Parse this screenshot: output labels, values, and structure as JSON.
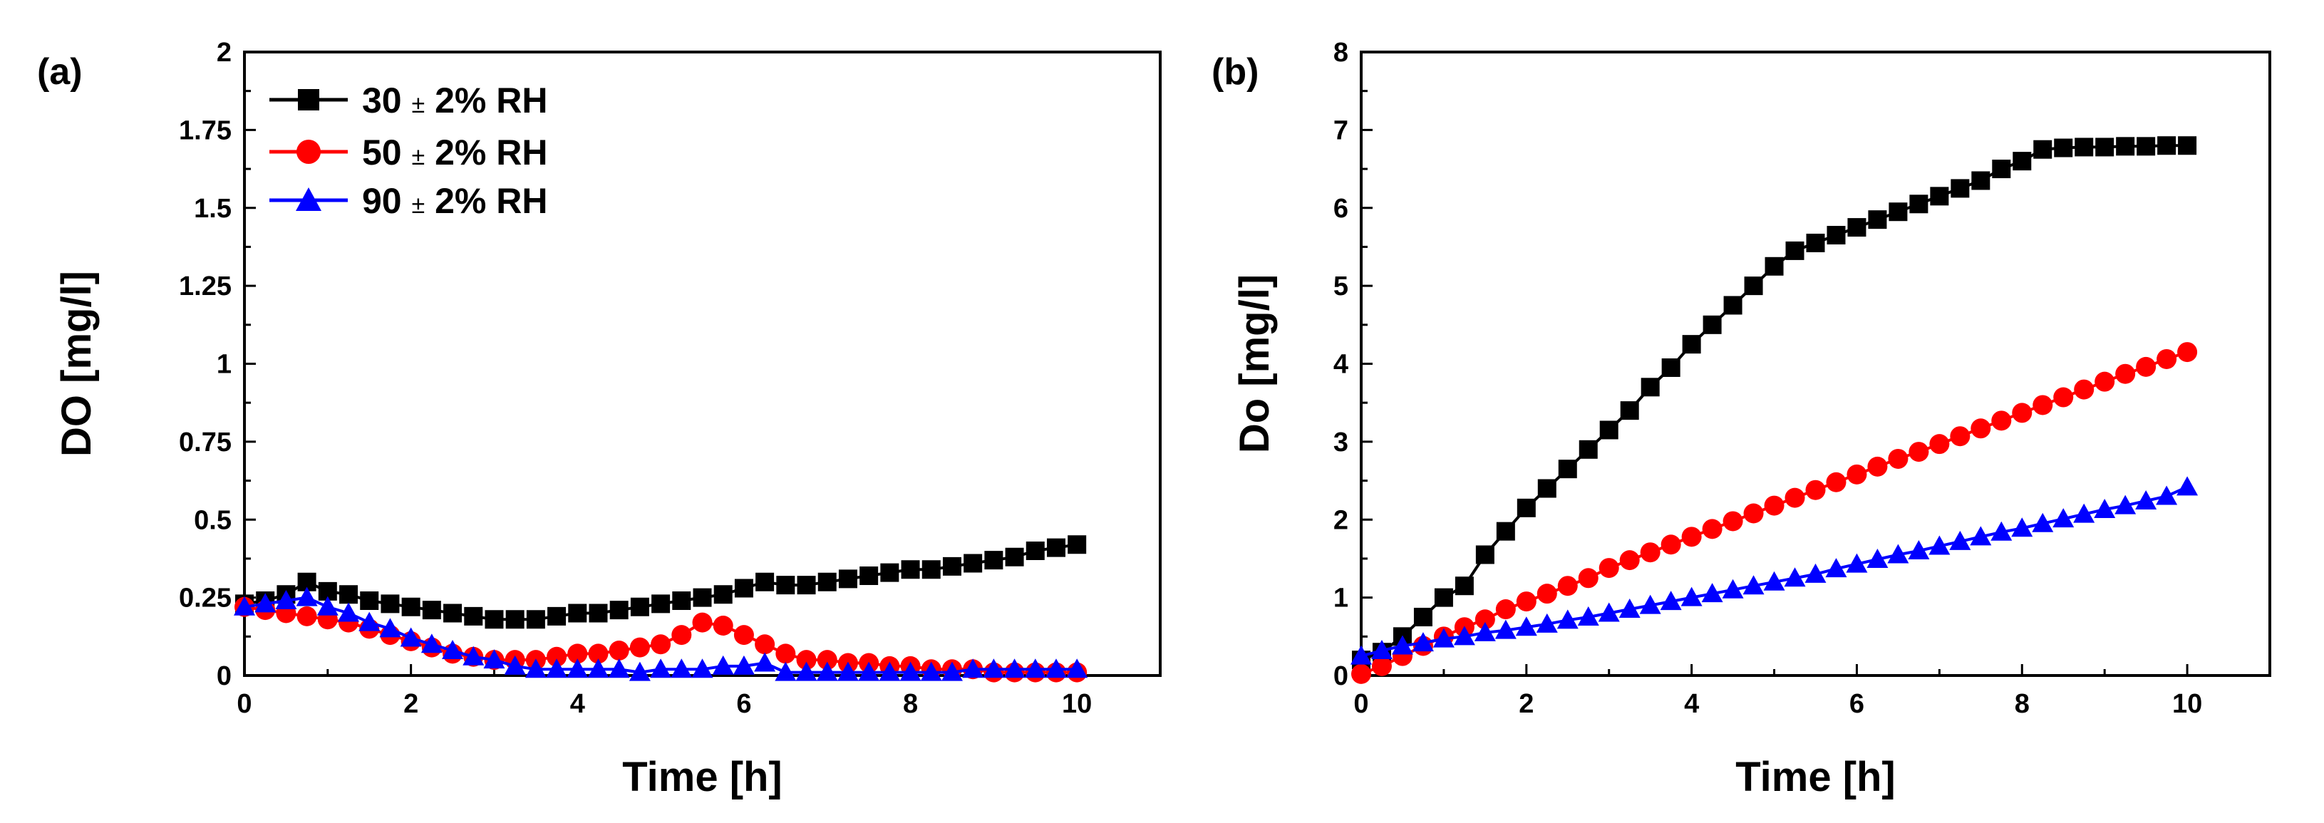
{
  "chart_data": [
    {
      "type": "line",
      "panel_label": "(a)",
      "xlabel": "Time [h]",
      "ylabel": "DO [mg/l]",
      "xlim": [
        0,
        11
      ],
      "ylim": [
        0,
        2
      ],
      "xticks": [
        "0",
        "2",
        "4",
        "6",
        "8",
        "10"
      ],
      "xtick_values": [
        0,
        2,
        4,
        6,
        8,
        10
      ],
      "yticks": [
        "0",
        "0.25",
        "0.5",
        "0.75",
        "1",
        "1.25",
        "1.5",
        "1.75",
        "2"
      ],
      "ytick_values": [
        0,
        0.25,
        0.5,
        0.75,
        1,
        1.25,
        1.5,
        1.75,
        2
      ],
      "legend": {
        "position": "top-left",
        "entries": [
          {
            "num": "30",
            "pm": "±",
            "rest": "2% RH"
          },
          {
            "num": "50",
            "pm": "±",
            "rest": "2% RH"
          },
          {
            "num": "90",
            "pm": "±",
            "rest": "2% RH"
          }
        ]
      },
      "series": [
        {
          "name": "30 ± 2% RH",
          "color": "#000000",
          "marker": "square",
          "x": [
            0,
            0.25,
            0.5,
            0.75,
            1,
            1.25,
            1.5,
            1.75,
            2,
            2.25,
            2.5,
            2.75,
            3,
            3.25,
            3.5,
            3.75,
            4,
            4.25,
            4.5,
            4.75,
            5,
            5.25,
            5.5,
            5.75,
            6,
            6.25,
            6.5,
            6.75,
            7,
            7.25,
            7.5,
            7.75,
            8,
            8.25,
            8.5,
            8.75,
            9,
            9.25,
            9.5,
            9.75,
            10
          ],
          "y": [
            0.23,
            0.24,
            0.26,
            0.3,
            0.27,
            0.26,
            0.24,
            0.23,
            0.22,
            0.21,
            0.2,
            0.19,
            0.18,
            0.18,
            0.18,
            0.19,
            0.2,
            0.2,
            0.21,
            0.22,
            0.23,
            0.24,
            0.25,
            0.26,
            0.28,
            0.3,
            0.29,
            0.29,
            0.3,
            0.31,
            0.32,
            0.33,
            0.34,
            0.34,
            0.35,
            0.36,
            0.37,
            0.38,
            0.4,
            0.41,
            0.42
          ]
        },
        {
          "name": "50 ± 2% RH",
          "color": "#ff0000",
          "marker": "circle",
          "x": [
            0,
            0.25,
            0.5,
            0.75,
            1,
            1.25,
            1.5,
            1.75,
            2,
            2.25,
            2.5,
            2.75,
            3,
            3.25,
            3.5,
            3.75,
            4,
            4.25,
            4.5,
            4.75,
            5,
            5.25,
            5.5,
            5.75,
            6,
            6.25,
            6.5,
            6.75,
            7,
            7.25,
            7.5,
            7.75,
            8,
            8.25,
            8.5,
            8.75,
            9,
            9.25,
            9.5,
            9.75,
            10
          ],
          "y": [
            0.22,
            0.21,
            0.2,
            0.19,
            0.18,
            0.17,
            0.15,
            0.13,
            0.11,
            0.09,
            0.07,
            0.06,
            0.05,
            0.05,
            0.05,
            0.06,
            0.07,
            0.07,
            0.08,
            0.09,
            0.1,
            0.13,
            0.17,
            0.16,
            0.13,
            0.1,
            0.07,
            0.05,
            0.05,
            0.04,
            0.04,
            0.03,
            0.03,
            0.02,
            0.02,
            0.02,
            0.01,
            0.01,
            0.01,
            0.01,
            0.01
          ]
        },
        {
          "name": "90 ± 2% RH",
          "color": "#0000ff",
          "marker": "triangle",
          "x": [
            0,
            0.25,
            0.5,
            0.75,
            1,
            1.25,
            1.5,
            1.75,
            2,
            2.25,
            2.5,
            2.75,
            3,
            3.25,
            3.5,
            3.75,
            4,
            4.25,
            4.5,
            4.75,
            5,
            5.25,
            5.5,
            5.75,
            6,
            6.25,
            6.5,
            6.75,
            7,
            7.25,
            7.5,
            7.75,
            8,
            8.25,
            8.5,
            8.75,
            9,
            9.25,
            9.5,
            9.75,
            10
          ],
          "y": [
            0.22,
            0.23,
            0.24,
            0.25,
            0.22,
            0.2,
            0.17,
            0.15,
            0.12,
            0.1,
            0.08,
            0.06,
            0.05,
            0.03,
            0.02,
            0.02,
            0.02,
            0.02,
            0.02,
            0.01,
            0.02,
            0.02,
            0.02,
            0.03,
            0.03,
            0.04,
            0.01,
            0.01,
            0.01,
            0.01,
            0.01,
            0.01,
            0.01,
            0.01,
            0.01,
            0.02,
            0.02,
            0.02,
            0.02,
            0.02,
            0.02
          ]
        }
      ]
    },
    {
      "type": "line",
      "panel_label": "(b)",
      "xlabel": "Time [h]",
      "ylabel": "Do [mg/l]",
      "xlim": [
        0,
        11
      ],
      "ylim": [
        0,
        8
      ],
      "xticks": [
        "0",
        "2",
        "4",
        "6",
        "8",
        "10"
      ],
      "xtick_values": [
        0,
        2,
        4,
        6,
        8,
        10
      ],
      "yticks": [
        "0",
        "1",
        "2",
        "3",
        "4",
        "5",
        "6",
        "7",
        "8"
      ],
      "ytick_values": [
        0,
        1,
        2,
        3,
        4,
        5,
        6,
        7,
        8
      ],
      "series": [
        {
          "name": "30 ± 2% RH",
          "color": "#000000",
          "marker": "square",
          "x": [
            0,
            0.25,
            0.5,
            0.75,
            1,
            1.25,
            1.5,
            1.75,
            2,
            2.25,
            2.5,
            2.75,
            3,
            3.25,
            3.5,
            3.75,
            4,
            4.25,
            4.5,
            4.75,
            5,
            5.25,
            5.5,
            5.75,
            6,
            6.25,
            6.5,
            6.75,
            7,
            7.25,
            7.5,
            7.75,
            8,
            8.25,
            8.5,
            8.75,
            9,
            9.25,
            9.5,
            9.75,
            10
          ],
          "y": [
            0.2,
            0.3,
            0.5,
            0.75,
            1.0,
            1.15,
            1.55,
            1.85,
            2.15,
            2.4,
            2.65,
            2.9,
            3.15,
            3.4,
            3.7,
            3.95,
            4.25,
            4.5,
            4.75,
            5.0,
            5.25,
            5.45,
            5.55,
            5.65,
            5.75,
            5.85,
            5.95,
            6.05,
            6.15,
            6.25,
            6.35,
            6.5,
            6.6,
            6.75,
            6.77,
            6.78,
            6.78,
            6.79,
            6.79,
            6.8,
            6.8
          ]
        },
        {
          "name": "50 ± 2% RH",
          "color": "#ff0000",
          "marker": "circle",
          "x": [
            0,
            0.25,
            0.5,
            0.75,
            1,
            1.25,
            1.5,
            1.75,
            2,
            2.25,
            2.5,
            2.75,
            3,
            3.25,
            3.5,
            3.75,
            4,
            4.25,
            4.5,
            4.75,
            5,
            5.25,
            5.5,
            5.75,
            6,
            6.25,
            6.5,
            6.75,
            7,
            7.25,
            7.5,
            7.75,
            8,
            8.25,
            8.5,
            8.75,
            9,
            9.25,
            9.5,
            9.75,
            10
          ],
          "y": [
            0.02,
            0.12,
            0.25,
            0.38,
            0.5,
            0.62,
            0.72,
            0.85,
            0.95,
            1.05,
            1.15,
            1.25,
            1.38,
            1.48,
            1.58,
            1.68,
            1.78,
            1.88,
            1.98,
            2.08,
            2.18,
            2.28,
            2.38,
            2.48,
            2.58,
            2.68,
            2.78,
            2.87,
            2.97,
            3.07,
            3.17,
            3.27,
            3.37,
            3.47,
            3.57,
            3.67,
            3.77,
            3.87,
            3.96,
            4.06,
            4.15
          ]
        },
        {
          "name": "90 ± 2% RH",
          "color": "#0000ff",
          "marker": "triangle",
          "x": [
            0,
            0.25,
            0.5,
            0.75,
            1,
            1.25,
            1.5,
            1.75,
            2,
            2.25,
            2.5,
            2.75,
            3,
            3.25,
            3.5,
            3.75,
            4,
            4.25,
            4.5,
            4.75,
            5,
            5.25,
            5.5,
            5.75,
            6,
            6.25,
            6.5,
            6.75,
            7,
            7.25,
            7.5,
            7.75,
            8,
            8.25,
            8.5,
            8.75,
            9,
            9.25,
            9.5,
            9.75,
            10
          ],
          "y": [
            0.25,
            0.32,
            0.38,
            0.42,
            0.47,
            0.5,
            0.55,
            0.58,
            0.62,
            0.66,
            0.71,
            0.75,
            0.8,
            0.85,
            0.9,
            0.95,
            1.0,
            1.05,
            1.1,
            1.15,
            1.2,
            1.25,
            1.3,
            1.37,
            1.43,
            1.49,
            1.55,
            1.6,
            1.66,
            1.72,
            1.78,
            1.84,
            1.89,
            1.95,
            2.01,
            2.07,
            2.13,
            2.18,
            2.24,
            2.3,
            2.42
          ]
        }
      ]
    }
  ]
}
